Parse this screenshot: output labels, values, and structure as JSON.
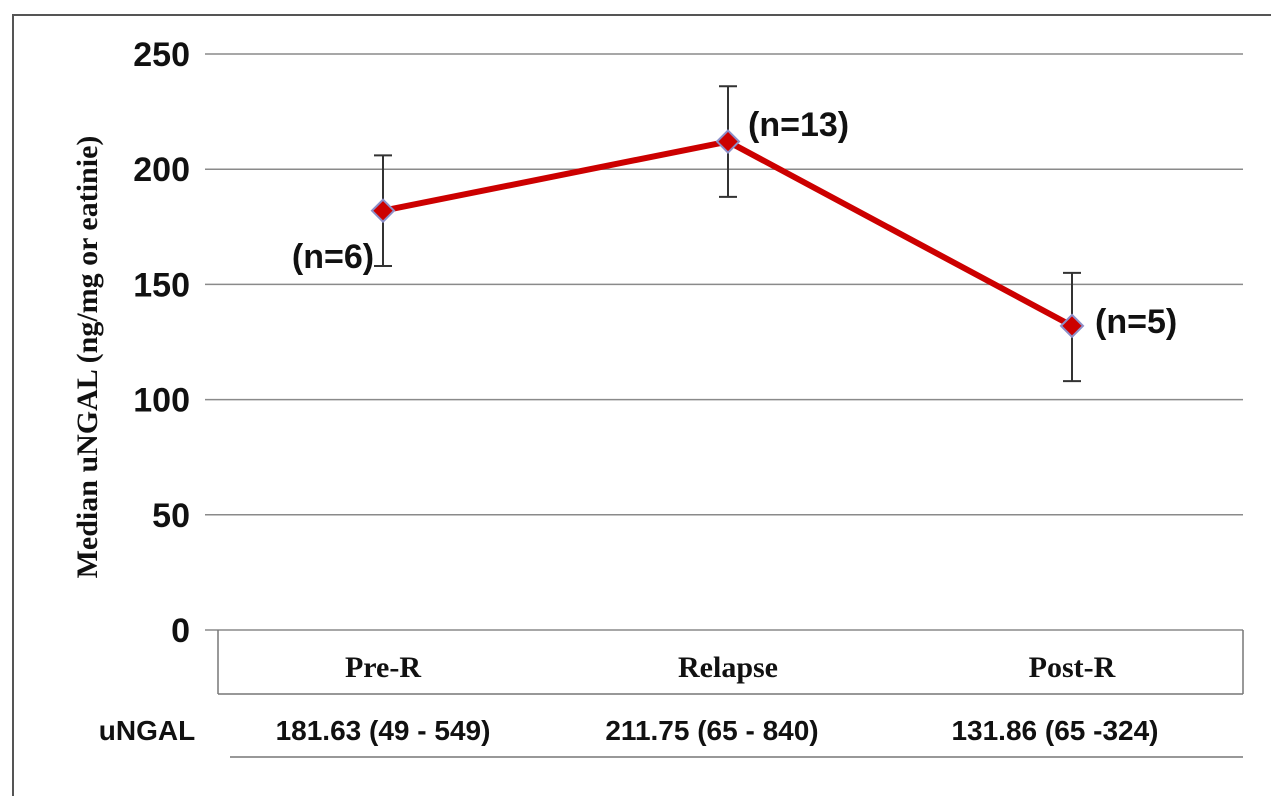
{
  "chart_data": {
    "type": "line",
    "categories": [
      "Pre-R",
      "Relapse",
      "Post-R"
    ],
    "series": [
      {
        "values": [
          182,
          212,
          132
        ],
        "error_low": [
          158,
          188,
          108
        ],
        "error_high": [
          206,
          236,
          155
        ],
        "point_labels": [
          "(n=6)",
          "(n=13)",
          "(n=5)"
        ]
      }
    ],
    "ylabel": "Median uNGAL (ng/mg or eatinie)",
    "ylim": [
      0,
      250
    ],
    "yticks": [
      0,
      50,
      100,
      150,
      200,
      250
    ],
    "grid": true,
    "line_color": "#cc0000",
    "marker_color": "#cc0000",
    "table": {
      "row_label": "uNGAL",
      "values": [
        "181.63 (49 - 549)",
        "211.75 (65 - 840)",
        "131.86 (65 -324)"
      ]
    }
  }
}
